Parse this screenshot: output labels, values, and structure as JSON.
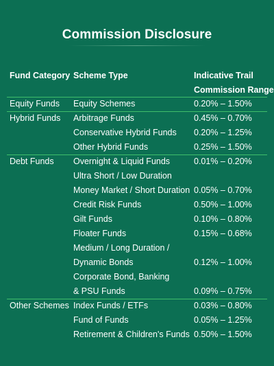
{
  "title": "Commission Disclosure",
  "headers": {
    "category": "Fund Category",
    "scheme": "Scheme Type",
    "range_line1": "Indicative Trail",
    "range_line2": "Commission Range"
  },
  "groups": [
    {
      "category": "Equity Funds",
      "rows": [
        {
          "scheme": "Equity Schemes",
          "range": "0.20% – 1.50%"
        }
      ]
    },
    {
      "category": "Hybrid Funds",
      "rows": [
        {
          "scheme": "Arbitrage Funds",
          "range": "0.45% – 0.70%"
        },
        {
          "scheme": "Conservative Hybrid Funds",
          "range": "0.20% – 1.25%"
        },
        {
          "scheme": "Other Hybrid Funds",
          "range": "0.25% – 1.50%"
        }
      ]
    },
    {
      "category": "Debt Funds",
      "rows": [
        {
          "scheme": "Overnight & Liquid Funds",
          "range": "0.01% – 0.20%"
        },
        {
          "scheme": "Ultra Short / Low Duration",
          "range": ""
        },
        {
          "scheme": "Money Market / Short Duration",
          "range": "0.05% – 0.70%"
        },
        {
          "scheme": "Credit Risk Funds",
          "range": "0.50% – 1.00%"
        },
        {
          "scheme": "Gilt Funds",
          "range": "0.10% – 0.80%"
        },
        {
          "scheme": "Floater Funds",
          "range": "0.15% – 0.68%"
        },
        {
          "scheme": "Medium / Long Duration /",
          "range": ""
        },
        {
          "scheme": "Dynamic Bonds",
          "range": "0.12% – 1.00%"
        },
        {
          "scheme": "Corporate Bond, Banking",
          "range": ""
        },
        {
          "scheme": "& PSU Funds",
          "range": "0.09% – 0.75%"
        }
      ]
    },
    {
      "category": "Other Schemes",
      "rows": [
        {
          "scheme": "Index Funds / ETFs",
          "range": "0.03% – 0.80%"
        },
        {
          "scheme": "Fund of Funds",
          "range": "0.05% – 1.25%"
        },
        {
          "scheme": "Retirement & Children's Funds",
          "range": "0.50% – 1.50%"
        }
      ]
    }
  ]
}
